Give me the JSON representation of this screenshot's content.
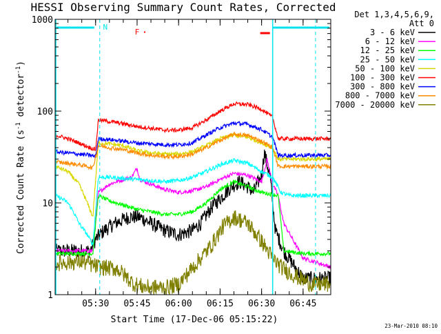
{
  "chart_data": {
    "type": "line",
    "title": "HESSI Observing Summary Count Rates, Corrected",
    "xlabel": "Start Time (17-Dec-06 05:15:22)",
    "ylabel_parts": [
      "Corrected Count Rate (s",
      "-1",
      " detector",
      "-1",
      ")"
    ],
    "scale": "log",
    "ylim": [
      1,
      1000
    ],
    "xlim": [
      "05:15:22",
      "06:55:00"
    ],
    "x_tick_labels": [
      "05:30",
      "05:45",
      "06:00",
      "06:15",
      "06:30",
      "06:45"
    ],
    "y_tick_labels": [
      "1",
      "10",
      "100",
      "1000"
    ],
    "legend_header": [
      "Det 1,3,4,5,6,9,",
      "Att 0"
    ],
    "footer": "23-Mar-2010 08:10",
    "flags": {
      "N": {
        "label": "N",
        "color": "#00e5ee"
      },
      "F": {
        "label": "F",
        "color": "#ff0000"
      }
    },
    "vertical_markers": [
      "05:31:30",
      "06:49:30"
    ],
    "series": [
      {
        "name": "3 - 6 keV",
        "color": "#000000",
        "x": [
          "05:15:22",
          "05:25:00",
          "05:28:00",
          "05:30:00",
          "05:33:00",
          "05:37:00",
          "05:42:00",
          "05:46:00",
          "05:50:00",
          "05:55:00",
          "06:00:00",
          "06:05:00",
          "06:08:00",
          "06:12:00",
          "06:16:00",
          "06:19:00",
          "06:22:00",
          "06:25:00",
          "06:27:00",
          "06:30:00",
          "06:31:00",
          "06:33:00",
          "06:35:00",
          "06:38:00",
          "06:45:00",
          "06:55:00"
        ],
        "y": [
          3,
          3,
          3,
          4,
          5,
          6,
          7,
          7,
          6,
          5,
          4.5,
          5,
          6,
          9,
          12,
          15,
          17,
          15,
          13,
          20,
          35,
          20,
          5,
          3,
          1.5,
          1.5
        ]
      },
      {
        "name": "6 - 12 keV",
        "color": "#ff00ff",
        "x": [
          "05:15:22",
          "05:29:00",
          "05:31:00",
          "05:35:00",
          "05:40:00",
          "05:43:00",
          "05:45:00",
          "05:46:00",
          "05:50:00",
          "05:55:00",
          "06:00:00",
          "06:05:00",
          "06:10:00",
          "06:15:00",
          "06:20:00",
          "06:25:00",
          "06:30:00",
          "06:32:00",
          "06:34:00",
          "06:36:00",
          "06:38:00",
          "06:45:00",
          "06:55:00"
        ],
        "y": [
          3,
          3,
          13,
          16,
          18,
          19,
          24,
          18,
          16,
          14,
          13,
          13.5,
          15,
          18,
          21,
          20,
          17,
          30,
          16,
          12,
          6,
          2.5,
          2
        ]
      },
      {
        "name": "12 - 25 keV",
        "color": "#00ff00",
        "x": [
          "05:15:22",
          "05:29:00",
          "05:31:00",
          "05:35:00",
          "05:40:00",
          "05:45:00",
          "05:50:00",
          "05:55:00",
          "06:00:00",
          "06:05:00",
          "06:10:00",
          "06:15:00",
          "06:20:00",
          "06:25:00",
          "06:30:00",
          "06:33:00",
          "06:36:00",
          "06:38:00",
          "06:45:00",
          "06:55:00"
        ],
        "y": [
          2.8,
          2.8,
          12,
          10.5,
          9.5,
          8.5,
          8,
          7.5,
          7.5,
          8,
          10,
          14,
          17,
          15,
          13,
          12.5,
          12,
          3,
          2.8,
          2.8
        ]
      },
      {
        "name": "25 - 50 keV",
        "color": "#00ffff",
        "x": [
          "05:15:22",
          "05:18:00",
          "05:20:00",
          "05:22:00",
          "05:24:00",
          "05:27:00",
          "05:29:00",
          "05:31:00",
          "05:35:00",
          "05:40:00",
          "05:45:00",
          "05:50:00",
          "05:55:00",
          "06:00:00",
          "06:05:00",
          "06:10:00",
          "06:15:00",
          "06:20:00",
          "06:25:00",
          "06:30:00",
          "06:34:00",
          "06:37:00",
          "06:40:00",
          "06:45:00",
          "06:55:00"
        ],
        "y": [
          12,
          11,
          10,
          8,
          6,
          4.5,
          3.5,
          19,
          19,
          18.5,
          18,
          17.5,
          17,
          17.5,
          19,
          22,
          26,
          29,
          27,
          22,
          19,
          13,
          12,
          12,
          12
        ]
      },
      {
        "name": "50 - 100 keV",
        "color": "#d8d800",
        "x": [
          "05:15:22",
          "05:20:00",
          "05:24:00",
          "05:27:00",
          "05:29:00",
          "05:31:00",
          "05:35:00",
          "05:40:00",
          "05:45:00",
          "05:50:00",
          "05:55:00",
          "06:00:00",
          "06:05:00",
          "06:10:00",
          "06:15:00",
          "06:20:00",
          "06:25:00",
          "06:30:00",
          "06:34:00",
          "06:36:00",
          "06:45:00",
          "06:55:00"
        ],
        "y": [
          25,
          22,
          16,
          10,
          7,
          45,
          44,
          42,
          37,
          35,
          34,
          34,
          36,
          42,
          50,
          55,
          52,
          45,
          40,
          30,
          30,
          30
        ]
      },
      {
        "name": "100 - 300 keV",
        "color": "#ff0000",
        "x": [
          "05:15:22",
          "05:20:00",
          "05:24:00",
          "05:28:00",
          "05:30:00",
          "05:31:00",
          "05:35:00",
          "05:40:00",
          "05:45:00",
          "05:50:00",
          "05:55:00",
          "06:00:00",
          "06:05:00",
          "06:10:00",
          "06:15:00",
          "06:20:00",
          "06:25:00",
          "06:30:00",
          "06:34:00",
          "06:36:00",
          "06:45:00",
          "06:55:00"
        ],
        "y": [
          55,
          50,
          45,
          40,
          38,
          80,
          77,
          73,
          68,
          65,
          62,
          62,
          66,
          80,
          100,
          120,
          118,
          105,
          85,
          50,
          50,
          50
        ]
      },
      {
        "name": "300 - 800 keV",
        "color": "#0000ff",
        "x": [
          "05:15:22",
          "05:20:00",
          "05:24:00",
          "05:28:00",
          "05:30:00",
          "05:31:00",
          "05:35:00",
          "05:40:00",
          "05:45:00",
          "05:50:00",
          "05:55:00",
          "06:00:00",
          "06:05:00",
          "06:10:00",
          "06:15:00",
          "06:20:00",
          "06:25:00",
          "06:30:00",
          "06:34:00",
          "06:36:00",
          "06:45:00",
          "06:55:00"
        ],
        "y": [
          36,
          35,
          34,
          33,
          32,
          50,
          49,
          47,
          45,
          44,
          43,
          43,
          45,
          55,
          66,
          74,
          72,
          63,
          52,
          33,
          33,
          33
        ]
      },
      {
        "name": "800 - 7000 keV",
        "color": "#ff8c00",
        "x": [
          "05:15:22",
          "05:20:00",
          "05:24:00",
          "05:27:00",
          "05:29:00",
          "05:31:00",
          "05:35:00",
          "05:40:00",
          "05:45:00",
          "05:50:00",
          "05:55:00",
          "06:00:00",
          "06:05:00",
          "06:10:00",
          "06:15:00",
          "06:20:00",
          "06:25:00",
          "06:30:00",
          "06:34:00",
          "06:36:00",
          "06:45:00",
          "06:55:00"
        ],
        "y": [
          28,
          27,
          26,
          25,
          24,
          42,
          40,
          38,
          35,
          33,
          32,
          32,
          34,
          40,
          48,
          56,
          54,
          47,
          40,
          25,
          25,
          25
        ]
      },
      {
        "name": "7000 - 20000 keV",
        "color": "#808000",
        "x": [
          "05:15:22",
          "05:25:00",
          "05:31:00",
          "05:38:00",
          "05:44:00",
          "05:48:00",
          "05:52:00",
          "05:56:00",
          "06:00:00",
          "06:04:00",
          "06:08:00",
          "06:12:00",
          "06:16:00",
          "06:20:00",
          "06:25:00",
          "06:30:00",
          "06:34:00",
          "06:37:00",
          "06:42:00",
          "06:48:00",
          "06:55:00"
        ],
        "y": [
          2.2,
          2.3,
          2.0,
          1.9,
          1.3,
          1.2,
          1.2,
          1.2,
          1.3,
          1.8,
          2.5,
          3.5,
          5.5,
          7,
          6,
          3.8,
          2.5,
          2,
          1.6,
          1.3,
          1.3
        ]
      }
    ]
  }
}
